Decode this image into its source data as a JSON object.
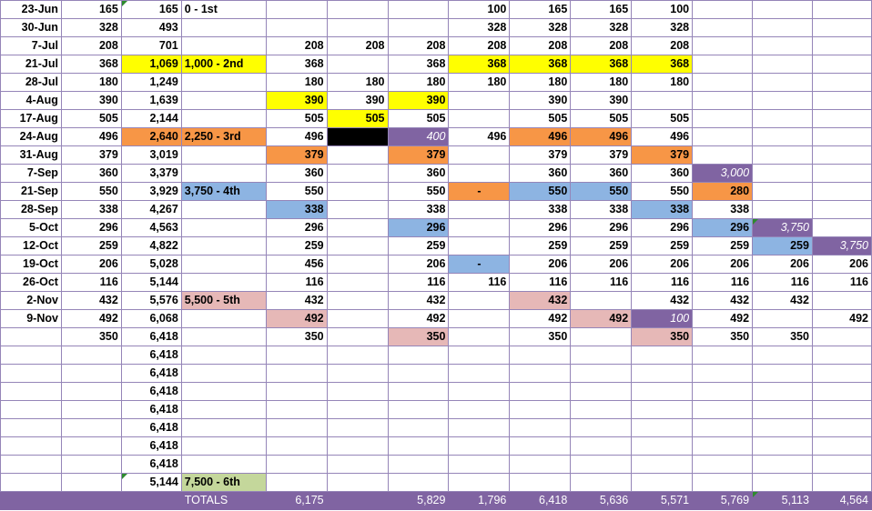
{
  "colors": {
    "yellow": "#ffff00",
    "orange": "#f79646",
    "blue": "#8db4e2",
    "pink": "#e6b8b7",
    "purple": "#8064a2",
    "green": "#c4d79b",
    "black": "#000000",
    "gridline": "#9585b8"
  },
  "rows": [
    [
      "23-Jun",
      "165",
      "165",
      "0 - 1st",
      "",
      "",
      "",
      "100",
      "165",
      "165",
      "100",
      "",
      "",
      ""
    ],
    [
      "30-Jun",
      "328",
      "493",
      "",
      "",
      "",
      "",
      "328",
      "328",
      "328",
      "328",
      "",
      "",
      ""
    ],
    [
      "7-Jul",
      "208",
      "701",
      "",
      "208",
      "208",
      "208",
      "208",
      "208",
      "208",
      "208",
      "",
      "",
      ""
    ],
    [
      "21-Jul",
      "368",
      "1,069",
      "1,000 - 2nd",
      "368",
      "",
      "368",
      "368",
      "368",
      "368",
      "368",
      "",
      "",
      ""
    ],
    [
      "28-Jul",
      "180",
      "1,249",
      "",
      "180",
      "180",
      "180",
      "180",
      "180",
      "180",
      "180",
      "",
      "",
      ""
    ],
    [
      "4-Aug",
      "390",
      "1,639",
      "",
      "390",
      "390",
      "390",
      "",
      "390",
      "390",
      "",
      "",
      "",
      ""
    ],
    [
      "17-Aug",
      "505",
      "2,144",
      "",
      "505",
      "505",
      "505",
      "",
      "505",
      "505",
      "505",
      "",
      "",
      ""
    ],
    [
      "24-Aug",
      "496",
      "2,640",
      "2,250 - 3rd",
      "496",
      "",
      "400",
      "496",
      "496",
      "496",
      "496",
      "",
      "",
      ""
    ],
    [
      "31-Aug",
      "379",
      "3,019",
      "",
      "379",
      "",
      "379",
      "",
      "379",
      "379",
      "379",
      "",
      "",
      ""
    ],
    [
      "7-Sep",
      "360",
      "3,379",
      "",
      "360",
      "",
      "360",
      "",
      "360",
      "360",
      "360",
      "3,000",
      "",
      ""
    ],
    [
      "21-Sep",
      "550",
      "3,929",
      "3,750 - 4th",
      "550",
      "",
      "550",
      "-",
      "550",
      "550",
      "550",
      "280",
      "",
      ""
    ],
    [
      "28-Sep",
      "338",
      "4,267",
      "",
      "338",
      "",
      "338",
      "",
      "338",
      "338",
      "338",
      "338",
      "",
      ""
    ],
    [
      "5-Oct",
      "296",
      "4,563",
      "",
      "296",
      "",
      "296",
      "",
      "296",
      "296",
      "296",
      "296",
      "3,750",
      ""
    ],
    [
      "12-Oct",
      "259",
      "4,822",
      "",
      "259",
      "",
      "259",
      "",
      "259",
      "259",
      "259",
      "259",
      "259",
      "3,750"
    ],
    [
      "19-Oct",
      "206",
      "5,028",
      "",
      "456",
      "",
      "206",
      "-",
      "206",
      "206",
      "206",
      "206",
      "206",
      "206"
    ],
    [
      "26-Oct",
      "116",
      "5,144",
      "",
      "116",
      "",
      "116",
      "116",
      "116",
      "116",
      "116",
      "116",
      "116",
      "116"
    ],
    [
      "2-Nov",
      "432",
      "5,576",
      "5,500 - 5th",
      "432",
      "",
      "432",
      "",
      "432",
      "",
      "432",
      "432",
      "432",
      ""
    ],
    [
      "9-Nov",
      "492",
      "6,068",
      "",
      "492",
      "",
      "492",
      "",
      "492",
      "492",
      "100",
      "492",
      "",
      "492"
    ],
    [
      "",
      "350",
      "6,418",
      "",
      "350",
      "",
      "350",
      "",
      "350",
      "",
      "350",
      "350",
      "350",
      ""
    ],
    [
      "",
      "",
      "6,418",
      "",
      "",
      "",
      "",
      "",
      "",
      "",
      "",
      "",
      "",
      ""
    ],
    [
      "",
      "",
      "6,418",
      "",
      "",
      "",
      "",
      "",
      "",
      "",
      "",
      "",
      "",
      ""
    ],
    [
      "",
      "",
      "6,418",
      "",
      "",
      "",
      "",
      "",
      "",
      "",
      "",
      "",
      "",
      ""
    ],
    [
      "",
      "",
      "6,418",
      "",
      "",
      "",
      "",
      "",
      "",
      "",
      "",
      "",
      "",
      ""
    ],
    [
      "",
      "",
      "6,418",
      "",
      "",
      "",
      "",
      "",
      "",
      "",
      "",
      "",
      "",
      ""
    ],
    [
      "",
      "",
      "6,418",
      "",
      "",
      "",
      "",
      "",
      "",
      "",
      "",
      "",
      "",
      ""
    ],
    [
      "",
      "",
      "6,418",
      "",
      "",
      "",
      "",
      "",
      "",
      "",
      "",
      "",
      "",
      ""
    ],
    [
      "",
      "",
      "5,144",
      "7,500 - 6th",
      "",
      "",
      "",
      "",
      "",
      "",
      "",
      "",
      "",
      ""
    ]
  ],
  "totals": [
    "",
    "",
    "",
    "TOTALS",
    "6,175",
    "",
    "5,829",
    "1,796",
    "6,418",
    "5,636",
    "5,571",
    "5,769",
    "5,113",
    "4,564"
  ],
  "fills": {
    "3-2": "yellow",
    "3-3": "yellow",
    "3-7": "yellow",
    "3-8": "yellow",
    "3-9": "yellow",
    "3-10": "yellow",
    "5-4": "yellow",
    "5-6": "yellow",
    "6-5": "yellow",
    "7-2": "orange",
    "7-3": "orange",
    "7-5": "black",
    "7-6": "purple",
    "7-8": "orange",
    "7-9": "orange",
    "8-4": "orange",
    "8-6": "orange",
    "8-10": "orange",
    "9-11": "purple",
    "10-3": "blue",
    "10-7": "orange",
    "10-8": "blue",
    "10-9": "blue",
    "10-11": "orange",
    "11-4": "blue",
    "11-10": "blue",
    "12-6": "blue",
    "12-11": "blue",
    "12-12": "purple",
    "13-12": "blue",
    "13-13": "purple",
    "14-7": "blue",
    "16-3": "pink",
    "16-8": "pink",
    "17-4": "pink",
    "17-9": "pink",
    "17-10": "purple",
    "18-6": "pink",
    "18-10": "pink",
    "26-3": "green"
  }
}
